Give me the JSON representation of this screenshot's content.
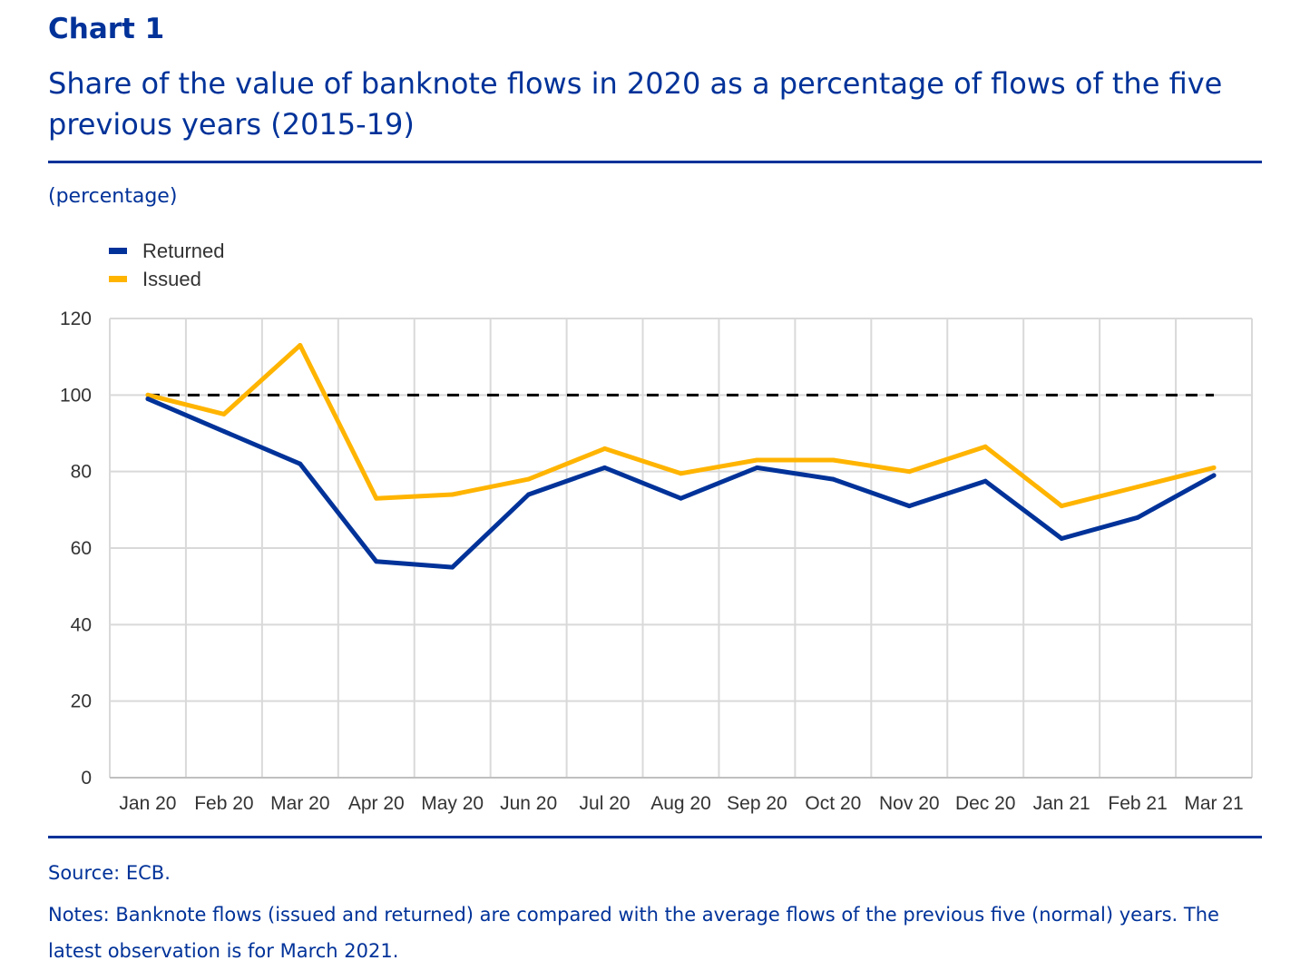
{
  "header": {
    "chart_label": "Chart 1",
    "title": "Share of the value of banknote flows in 2020 as a percentage of flows of the five previous years (2015-19)",
    "unit": "(percentage)"
  },
  "footer": {
    "source": "Source: ECB.",
    "notes": "Notes: Banknote flows (issued and returned) are compared with the average flows of the previous five (normal) years. The latest observation is for March 2021."
  },
  "chart_data": {
    "type": "line",
    "title": "Share of the value of banknote flows in 2020 as a percentage of flows of the five previous years (2015-19)",
    "ylabel": "(percentage)",
    "xlabel": "",
    "categories": [
      "Jan 20",
      "Feb 20",
      "Mar 20",
      "Apr 20",
      "May 20",
      "Jun 20",
      "Jul 20",
      "Aug 20",
      "Sep 20",
      "Oct 20",
      "Nov 20",
      "Dec 20",
      "Jan 21",
      "Feb 21",
      "Mar 21"
    ],
    "ylim": [
      0,
      120
    ],
    "yticks": [
      0,
      20,
      40,
      60,
      80,
      100,
      120
    ],
    "grid": true,
    "legend_position": "top-left",
    "series": [
      {
        "name": "Returned",
        "color": "#003299",
        "values": [
          99,
          90.5,
          82,
          56.5,
          55,
          74,
          81,
          73,
          81,
          78,
          71,
          77.5,
          62.5,
          68,
          79
        ]
      },
      {
        "name": "Issued",
        "color": "#FFB400",
        "values": [
          100,
          95,
          113,
          73,
          74,
          78,
          86,
          79.5,
          83,
          83,
          80,
          86.5,
          71,
          76,
          81
        ]
      }
    ],
    "reference_line": {
      "value": 100,
      "style": "dashed",
      "color": "#000000"
    }
  }
}
